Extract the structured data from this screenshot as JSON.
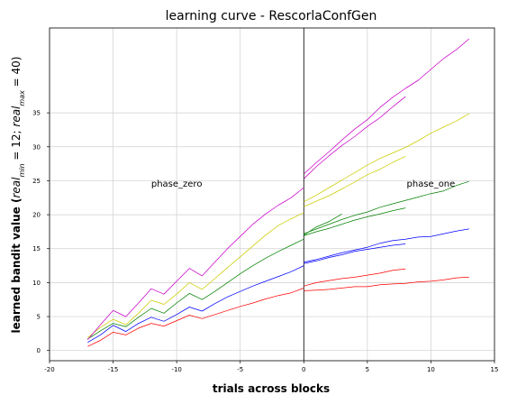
{
  "chart_data": {
    "type": "line",
    "title": "learning curve - RescorlaConfGen",
    "xlabel": "trials across blocks",
    "ylabel_parts": [
      "learned bandit value (",
      "real",
      "min",
      " = 12; ",
      "real",
      "max",
      " = 40)"
    ],
    "xlim": [
      -20,
      15
    ],
    "ylim": [
      -1.5,
      47.5
    ],
    "xticks": [
      -20,
      -15,
      -10,
      -5,
      0,
      5,
      10,
      15
    ],
    "yticks": [
      0,
      5,
      10,
      15,
      20,
      25,
      30,
      35
    ],
    "grid": true,
    "vline_x": 0,
    "annotations": [
      {
        "text": "phase_zero",
        "x": -10,
        "y": 24.6
      },
      {
        "text": "phase_one",
        "x": 10,
        "y": 24.6
      }
    ],
    "series": [
      {
        "color": "#ff0000",
        "x": [
          -17,
          -16,
          -15,
          -14,
          -13,
          -12,
          -11,
          -10,
          -9,
          -8,
          -7,
          -6,
          -5,
          -4,
          -3,
          -2,
          -1,
          0
        ],
        "y": [
          0.6,
          1.5,
          2.7,
          2.3,
          3.3,
          4.0,
          3.6,
          4.4,
          5.2,
          4.7,
          5.3,
          5.9,
          6.5,
          7.0,
          7.6,
          8.1,
          8.5,
          9.2
        ]
      },
      {
        "color": "#ff0000",
        "x": [
          0,
          1,
          2,
          3,
          4,
          5,
          6,
          7,
          8
        ],
        "y": [
          9.5,
          10.0,
          10.3,
          10.6,
          10.8,
          11.1,
          11.4,
          11.8,
          12.0
        ]
      },
      {
        "color": "#ff0000",
        "x": [
          0,
          1,
          2,
          3,
          4,
          5,
          6,
          7,
          8,
          9,
          10,
          11,
          12,
          13
        ],
        "y": [
          8.8,
          8.9,
          9.0,
          9.2,
          9.4,
          9.4,
          9.7,
          9.8,
          9.9,
          10.1,
          10.2,
          10.4,
          10.7,
          10.8
        ]
      },
      {
        "color": "#0000ff",
        "x": [
          -17,
          -16,
          -15,
          -14,
          -13,
          -12,
          -11,
          -10,
          -9,
          -8,
          -7,
          -6,
          -5,
          -4,
          -3,
          -2,
          -1,
          0
        ],
        "y": [
          1.2,
          2.3,
          3.7,
          2.8,
          4.0,
          4.9,
          4.3,
          5.3,
          6.4,
          5.8,
          6.9,
          7.9,
          8.7,
          9.5,
          10.2,
          10.9,
          11.6,
          12.5
        ]
      },
      {
        "color": "#0000ff",
        "x": [
          0,
          1,
          2,
          3,
          4,
          5,
          6,
          7,
          8
        ],
        "y": [
          12.8,
          13.2,
          13.7,
          14.1,
          14.6,
          14.9,
          15.2,
          15.5,
          15.7
        ]
      },
      {
        "color": "#0000ff",
        "x": [
          0,
          1,
          2,
          3,
          4,
          5,
          6,
          7,
          8,
          9,
          10,
          11,
          12,
          13
        ],
        "y": [
          13.0,
          13.4,
          13.9,
          14.4,
          14.8,
          15.2,
          15.8,
          16.2,
          16.4,
          16.7,
          16.8,
          17.2,
          17.6,
          17.9
        ]
      },
      {
        "color": "#008000",
        "x": [
          -17,
          -16,
          -15,
          -14,
          -13,
          -12,
          -11,
          -10,
          -9,
          -8,
          -7,
          -6,
          -5,
          -4,
          -3,
          -2,
          -1,
          0
        ],
        "y": [
          1.7,
          2.9,
          4.0,
          3.5,
          4.9,
          6.2,
          5.5,
          7.0,
          8.4,
          7.5,
          8.7,
          10.0,
          11.3,
          12.5,
          13.6,
          14.6,
          15.5,
          16.4
        ]
      },
      {
        "color": "#008000",
        "x": [
          0,
          1,
          2,
          3
        ],
        "y": [
          17.0,
          18.2,
          19.0,
          20.1
        ]
      },
      {
        "color": "#008000",
        "x": [
          0,
          1,
          2,
          3,
          4,
          5,
          6,
          7,
          8
        ],
        "y": [
          16.9,
          17.5,
          18.0,
          18.6,
          19.2,
          19.7,
          20.1,
          20.6,
          21.0
        ]
      },
      {
        "color": "#008000",
        "x": [
          0,
          1,
          2,
          3,
          4,
          5,
          6,
          7,
          8,
          9,
          10,
          11,
          12,
          13
        ],
        "y": [
          17.2,
          17.9,
          18.6,
          19.3,
          19.9,
          20.4,
          21.1,
          21.6,
          22.1,
          22.6,
          23.1,
          23.5,
          24.3,
          24.9
        ]
      },
      {
        "color": "#cccc00",
        "x": [
          -17,
          -16,
          -15,
          -14,
          -13,
          -12,
          -11,
          -10,
          -9,
          -8,
          -7,
          -6,
          -5,
          -4,
          -3,
          -2,
          -1,
          0
        ],
        "y": [
          1.9,
          3.4,
          4.6,
          3.8,
          5.5,
          7.4,
          6.8,
          8.3,
          10.0,
          9.0,
          10.6,
          12.2,
          13.8,
          15.4,
          17.0,
          18.4,
          19.4,
          20.3
        ]
      },
      {
        "color": "#cccc00",
        "x": [
          0,
          1,
          2,
          3,
          4,
          5,
          6,
          7,
          8
        ],
        "y": [
          21.2,
          22.0,
          22.8,
          23.8,
          24.8,
          25.9,
          26.7,
          27.7,
          28.6
        ]
      },
      {
        "color": "#cccc00",
        "x": [
          0,
          1,
          2,
          3,
          4,
          5,
          6,
          7,
          8,
          9,
          10,
          11,
          12,
          13
        ],
        "y": [
          21.9,
          22.9,
          24.0,
          25.1,
          26.2,
          27.3,
          28.3,
          29.1,
          29.9,
          30.9,
          32.0,
          32.9,
          33.8,
          34.9
        ]
      },
      {
        "color": "#cc00cc",
        "x": [
          -17,
          -16,
          -15,
          -14,
          -13,
          -12,
          -11,
          -10,
          -9,
          -8,
          -7,
          -6,
          -5,
          -4,
          -3,
          -2,
          -1,
          0
        ],
        "y": [
          1.6,
          3.8,
          5.9,
          5.0,
          7.0,
          9.1,
          8.3,
          10.2,
          12.1,
          11.0,
          13.0,
          15.0,
          16.8,
          18.6,
          20.1,
          21.4,
          22.5,
          24.0
        ]
      },
      {
        "color": "#cc00cc",
        "x": [
          0,
          1,
          2,
          3,
          4,
          5,
          6,
          7,
          8
        ],
        "y": [
          25.3,
          27.1,
          28.7,
          30.2,
          31.5,
          33.0,
          34.3,
          35.9,
          37.4
        ]
      },
      {
        "color": "#cc00cc",
        "x": [
          0,
          1,
          2,
          3,
          4,
          5,
          6,
          7,
          8,
          9,
          10,
          11,
          12,
          13
        ],
        "y": [
          26.0,
          27.7,
          29.3,
          31.0,
          32.6,
          34.0,
          35.8,
          37.3,
          38.6,
          39.8,
          41.4,
          43.0,
          44.3,
          45.9
        ]
      }
    ]
  }
}
